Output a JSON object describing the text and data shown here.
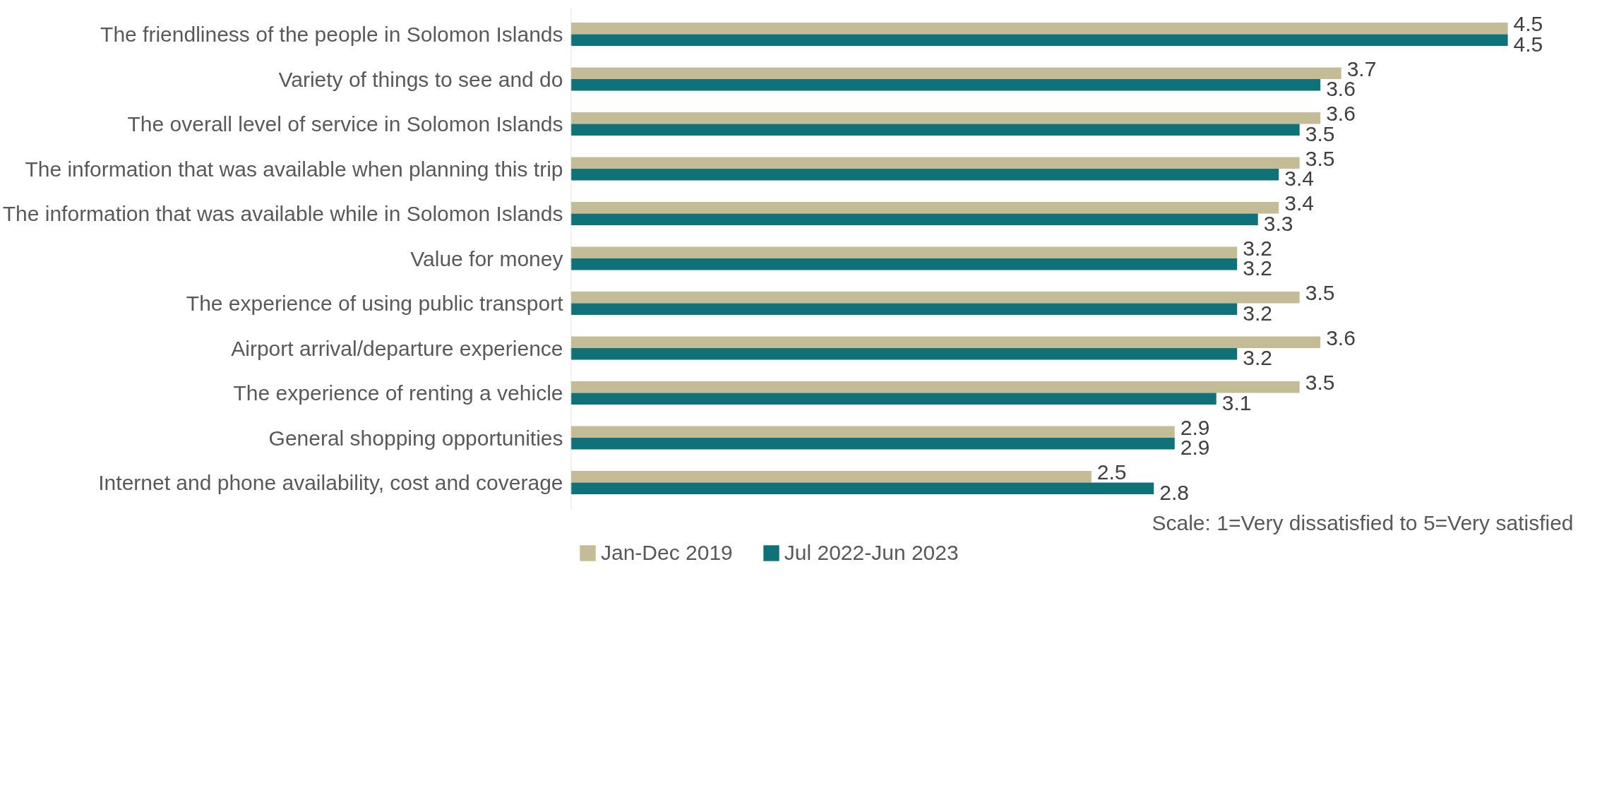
{
  "chart_data": {
    "type": "bar",
    "orientation": "horizontal",
    "categories": [
      "The friendliness of the people in Solomon Islands",
      "Variety of things to see and do",
      "The overall level of service in Solomon Islands",
      "The information that was available when planning this trip",
      "The information that was available while in Solomon Islands",
      "Value for money",
      "The experience of using public transport",
      "Airport arrival/departure experience",
      "The experience of renting a vehicle",
      "General shopping opportunities",
      "Internet and phone availability, cost and coverage"
    ],
    "series": [
      {
        "name": "Jan-Dec 2019",
        "color": "#c4bc96",
        "values": [
          4.5,
          3.7,
          3.6,
          3.5,
          3.4,
          3.2,
          3.5,
          3.6,
          3.5,
          2.9,
          2.5
        ]
      },
      {
        "name": "Jul 2022-Jun 2023",
        "color": "#0e7278",
        "values": [
          4.5,
          3.6,
          3.5,
          3.4,
          3.3,
          3.2,
          3.2,
          3.2,
          3.1,
          2.9,
          2.8
        ]
      }
    ],
    "tick_labels": "y",
    "grid": false,
    "data_labels": true,
    "legend": "bottom",
    "annotations": [
      "Scale: 1=Very dissatisfied to 5=Very satisfied"
    ]
  }
}
